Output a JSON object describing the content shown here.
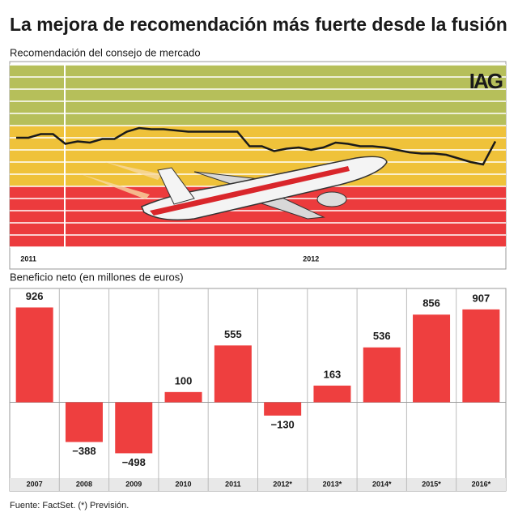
{
  "title": "La mejora de recomendación más fuerte desde la fusión",
  "source": "Fuente: FactSet. (*) Previsión.",
  "chart_data": [
    {
      "type": "line",
      "title": "Recomendación del consejo de mercado",
      "logo": "IAG",
      "categories": [
        null,
        "2011",
        null,
        null,
        null,
        null,
        null,
        null,
        null,
        null,
        null,
        null,
        null,
        null,
        null,
        null,
        null,
        null,
        null,
        null,
        null,
        null,
        null,
        null,
        "2012",
        null,
        null,
        null,
        null,
        null,
        null,
        null,
        null,
        null,
        null,
        null,
        null,
        null,
        null,
        null
      ],
      "values": [
        9.0,
        9.0,
        9.3,
        9.3,
        8.5,
        8.7,
        8.6,
        8.9,
        8.9,
        9.5,
        9.8,
        9.7,
        9.7,
        9.6,
        9.5,
        9.5,
        9.5,
        9.5,
        9.5,
        8.3,
        8.3,
        7.9,
        8.1,
        8.2,
        8.0,
        8.2,
        8.6,
        8.5,
        8.3,
        8.3,
        8.2,
        8.0,
        7.8,
        7.7,
        7.7,
        7.6,
        7.3,
        7.0,
        6.8,
        8.7
      ],
      "color": "#1a1a1a",
      "ylim": [
        0,
        15
      ],
      "bands": [
        {
          "from": 0,
          "to": 5,
          "color": "#ec3b3d"
        },
        {
          "from": 5,
          "to": 10,
          "color": "#efc23a"
        },
        {
          "from": 10,
          "to": 15,
          "color": "#b6bf5a"
        }
      ]
    },
    {
      "type": "bar",
      "title": "Beneficio neto (en millones de euros)",
      "categories": [
        "2007",
        "2008",
        "2009",
        "2010",
        "2011",
        "2012*",
        "2013*",
        "2014*",
        "2015*",
        "2016*"
      ],
      "values": [
        926,
        -388,
        -498,
        100,
        555,
        -130,
        163,
        536,
        856,
        907
      ],
      "value_labels": [
        "926",
        "−388",
        "−498",
        "100",
        "555",
        "−130",
        "163",
        "536",
        "856",
        "907"
      ],
      "color": "#ee3f3f",
      "ylim": [
        -740,
        1080
      ]
    }
  ]
}
